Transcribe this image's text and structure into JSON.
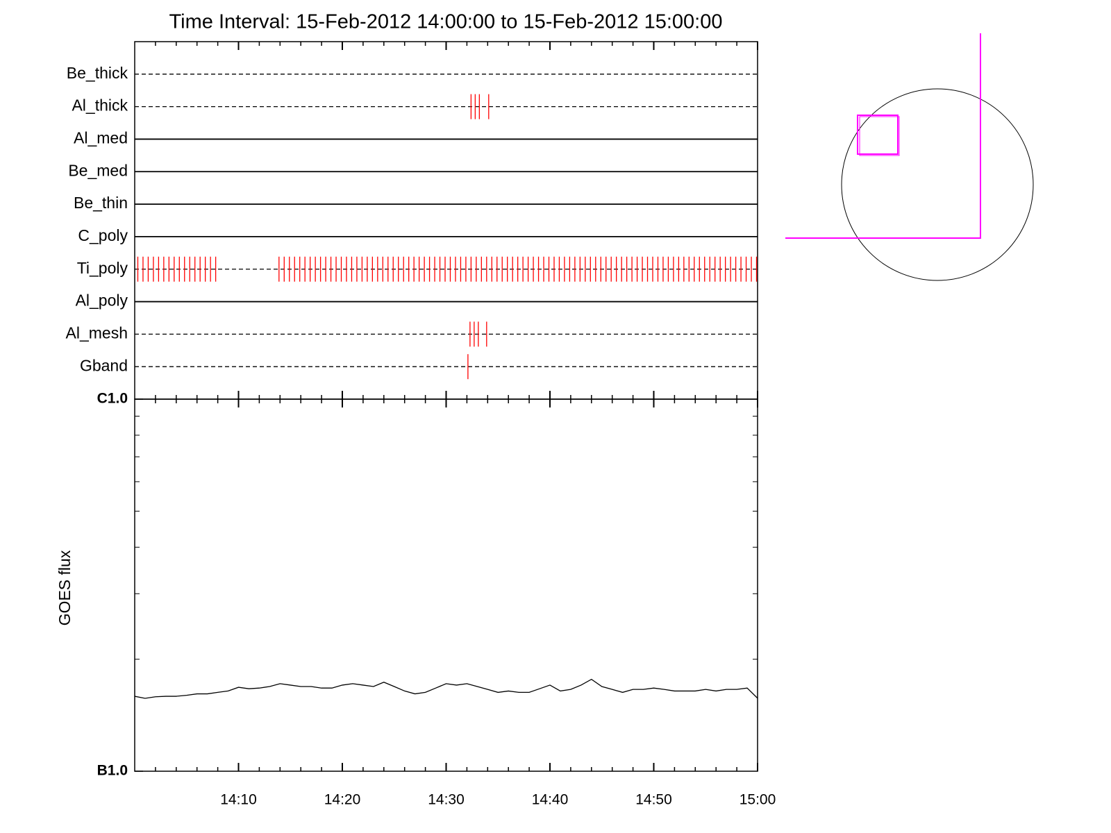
{
  "chart_data": [
    {
      "type": "timeline",
      "title": "Time Interval: 15-Feb-2012 14:00:00 to 15-Feb-2012 15:00:00",
      "xlim": [
        0,
        60
      ],
      "xminorticks": [
        2,
        4,
        6,
        8,
        12,
        14,
        16,
        18,
        22,
        24,
        26,
        28,
        32,
        34,
        36,
        38,
        42,
        44,
        46,
        48,
        52,
        54,
        56,
        58
      ],
      "rows": [
        {
          "name": "Be_thick",
          "style": "dashed",
          "color": "#ff0000",
          "values": []
        },
        {
          "name": "Al_thick",
          "style": "dashed",
          "color": "#ff0000",
          "values": [
            32.4,
            32.8,
            33.2,
            34.1
          ]
        },
        {
          "name": "Al_med",
          "style": "solid",
          "color": "#ff0000",
          "values": []
        },
        {
          "name": "Be_med",
          "style": "solid",
          "color": "#ff0000",
          "values": []
        },
        {
          "name": "Be_thin",
          "style": "solid",
          "color": "#ff0000",
          "values": []
        },
        {
          "name": "C_poly",
          "style": "solid",
          "color": "#ff0000",
          "values": []
        },
        {
          "name": "Ti_poly",
          "style": "dashed",
          "color": "#ff0000",
          "values": [
            0.3,
            0.8,
            1.3,
            1.8,
            2.3,
            2.8,
            3.3,
            3.8,
            4.3,
            4.8,
            5.3,
            5.8,
            6.3,
            6.8,
            7.3,
            7.8,
            13.9,
            14.4,
            14.9,
            15.4,
            15.9,
            16.4,
            16.9,
            17.4,
            17.9,
            18.4,
            18.9,
            19.4,
            19.9,
            20.4,
            20.9,
            21.4,
            21.9,
            22.4,
            22.9,
            23.4,
            23.9,
            24.4,
            24.9,
            25.4,
            25.9,
            26.4,
            26.9,
            27.4,
            27.9,
            28.4,
            28.9,
            29.4,
            29.9,
            30.4,
            30.9,
            31.4,
            31.9,
            32.4,
            32.9,
            33.4,
            33.9,
            34.4,
            34.9,
            35.4,
            35.9,
            36.4,
            36.9,
            37.4,
            37.9,
            38.4,
            38.9,
            39.4,
            39.9,
            40.4,
            40.9,
            41.4,
            41.9,
            42.4,
            42.9,
            43.4,
            43.9,
            44.4,
            44.9,
            45.4,
            45.9,
            46.4,
            46.9,
            47.4,
            47.9,
            48.4,
            48.9,
            49.4,
            49.9,
            50.4,
            50.9,
            51.4,
            51.9,
            52.4,
            52.9,
            53.4,
            53.9,
            54.4,
            54.9,
            55.4,
            55.9,
            56.4,
            56.9,
            57.4,
            57.9,
            58.4,
            58.9,
            59.4,
            59.9
          ]
        },
        {
          "name": "Al_poly",
          "style": "solid",
          "color": "#ff0000",
          "values": []
        },
        {
          "name": "Al_mesh",
          "style": "dashed",
          "color": "#ff0000",
          "values": [
            32.3,
            32.7,
            33.1,
            33.9
          ]
        },
        {
          "name": "Gband",
          "style": "dashed",
          "color": "#ff0000",
          "values": [
            32.1
          ]
        }
      ]
    },
    {
      "type": "line",
      "ylabel": "GOES flux",
      "log": true,
      "color": "#000000",
      "xlim": [
        0,
        60
      ],
      "xticks": [
        {
          "value": 10,
          "label": "14:10"
        },
        {
          "value": 20,
          "label": "14:20"
        },
        {
          "value": 30,
          "label": "14:30"
        },
        {
          "value": 40,
          "label": "14:40"
        },
        {
          "value": 50,
          "label": "14:50"
        },
        {
          "value": 60,
          "label": "15:00"
        }
      ],
      "xminorticks": [
        2,
        4,
        6,
        8,
        12,
        14,
        16,
        18,
        22,
        24,
        26,
        28,
        32,
        34,
        36,
        38,
        42,
        44,
        46,
        48,
        52,
        54,
        56,
        58
      ],
      "ylim": [
        1e-07,
        1e-06
      ],
      "yticks": [
        {
          "value": 1e-07,
          "label": "B1.0"
        },
        {
          "value": 1e-06,
          "label": "C1.0"
        }
      ],
      "yminorticks": [
        2e-07,
        3e-07,
        4e-07,
        5e-07,
        6e-07,
        7e-07,
        8e-07,
        9e-07
      ],
      "x": [
        0,
        1,
        2,
        3,
        4,
        5,
        6,
        7,
        8,
        9,
        10,
        11,
        12,
        13,
        14,
        15,
        16,
        17,
        18,
        19,
        20,
        21,
        22,
        23,
        24,
        25,
        26,
        27,
        28,
        29,
        30,
        31,
        32,
        33,
        34,
        35,
        36,
        37,
        38,
        39,
        40,
        41,
        42,
        43,
        44,
        45,
        46,
        47,
        48,
        49,
        50,
        51,
        52,
        53,
        54,
        55,
        56,
        57,
        58,
        59,
        60
      ],
      "values": [
        1.59e-07,
        1.57e-07,
        1.585e-07,
        1.59e-07,
        1.59e-07,
        1.6e-07,
        1.614e-07,
        1.614e-07,
        1.629e-07,
        1.643e-07,
        1.681e-07,
        1.666e-07,
        1.673e-07,
        1.689e-07,
        1.719e-07,
        1.704e-07,
        1.689e-07,
        1.689e-07,
        1.673e-07,
        1.673e-07,
        1.704e-07,
        1.719e-07,
        1.704e-07,
        1.689e-07,
        1.735e-07,
        1.689e-07,
        1.643e-07,
        1.614e-07,
        1.629e-07,
        1.673e-07,
        1.719e-07,
        1.704e-07,
        1.719e-07,
        1.689e-07,
        1.659e-07,
        1.629e-07,
        1.643e-07,
        1.629e-07,
        1.629e-07,
        1.666e-07,
        1.704e-07,
        1.643e-07,
        1.659e-07,
        1.704e-07,
        1.766e-07,
        1.689e-07,
        1.659e-07,
        1.629e-07,
        1.659e-07,
        1.659e-07,
        1.673e-07,
        1.659e-07,
        1.643e-07,
        1.643e-07,
        1.643e-07,
        1.659e-07,
        1.643e-07,
        1.659e-07,
        1.659e-07,
        1.673e-07,
        1.571e-07
      ]
    }
  ]
}
